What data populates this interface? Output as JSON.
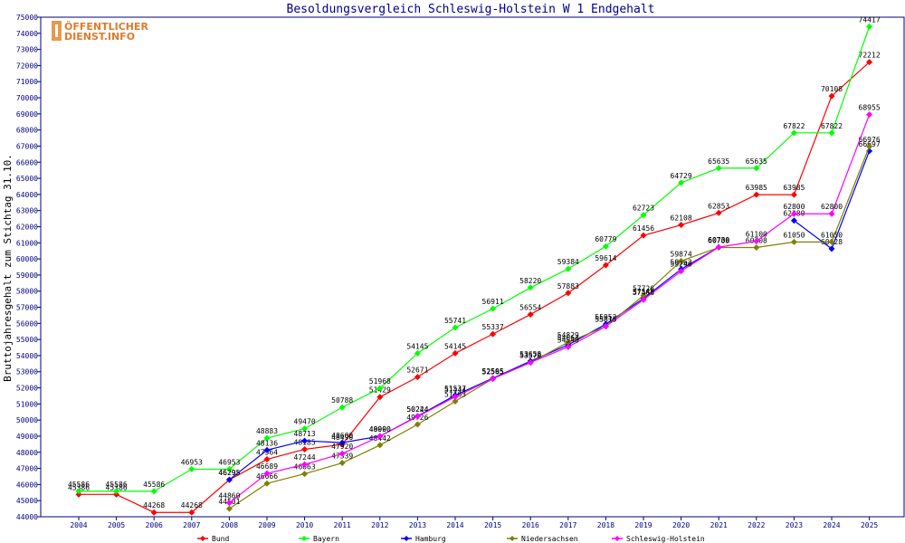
{
  "chart_data": {
    "type": "line",
    "title": "Besoldungsvergleich Schleswig-Holstein W 1 Endgehalt",
    "xlabel": "",
    "ylabel": "Bruttojahresgehalt zum Stichtag 31.10.",
    "ylim": [
      44000,
      75000
    ],
    "ytick_step": 1000,
    "grid": false,
    "legend_placement": "bottom",
    "logo": {
      "line1": "ÖFFENTLICHER",
      "line2": "DIENST.INFO"
    },
    "x": [
      "2004",
      "2005",
      "2006",
      "2007",
      "2008",
      "2009",
      "2010",
      "2011",
      "2012",
      "2013",
      "2014",
      "2015",
      "2016",
      "2017",
      "2018",
      "2019",
      "2020",
      "2021",
      "2022",
      "2023",
      "2024",
      "2025"
    ],
    "series": [
      {
        "name": "Bund",
        "color": "#ff0000",
        "values": [
          45386,
          45386,
          44268,
          44268,
          46295,
          47564,
          48185,
          48490,
          51429,
          52671,
          54145,
          55337,
          56554,
          57883,
          59614,
          61456,
          62108,
          62853,
          63985,
          63985,
          70108,
          72212
        ]
      },
      {
        "name": "Bayern",
        "color": "#00ff00",
        "values": [
          45586,
          45586,
          45586,
          46953,
          46953,
          48883,
          49470,
          50788,
          51968,
          54145,
          55741,
          56911,
          58220,
          59384,
          60779,
          62723,
          64729,
          65635,
          65635,
          67822,
          67822,
          74417
        ]
      },
      {
        "name": "Hamburg",
        "color": "#0000ff",
        "values": [
          null,
          null,
          null,
          null,
          46295,
          48136,
          48713,
          48600,
          49000,
          50244,
          51537,
          52595,
          53658,
          54664,
          55952,
          57545,
          59362,
          60730,
          null,
          62380,
          60628,
          66697
        ]
      },
      {
        "name": "Niedersachsen",
        "color": "#808000",
        "values": [
          null,
          null,
          null,
          null,
          44501,
          46066,
          46663,
          47339,
          48442,
          49726,
          51163,
          52565,
          53570,
          54829,
          55815,
          57726,
          59874,
          60708,
          60708,
          61050,
          61050,
          66976
        ]
      },
      {
        "name": "Schleswig-Holstein",
        "color": "#ff00ff",
        "values": [
          null,
          null,
          null,
          null,
          44860,
          46689,
          47244,
          47920,
          48990,
          50224,
          51444,
          52565,
          53570,
          54540,
          55815,
          57466,
          59240,
          60730,
          61100,
          62800,
          62800,
          68955
        ]
      }
    ]
  }
}
